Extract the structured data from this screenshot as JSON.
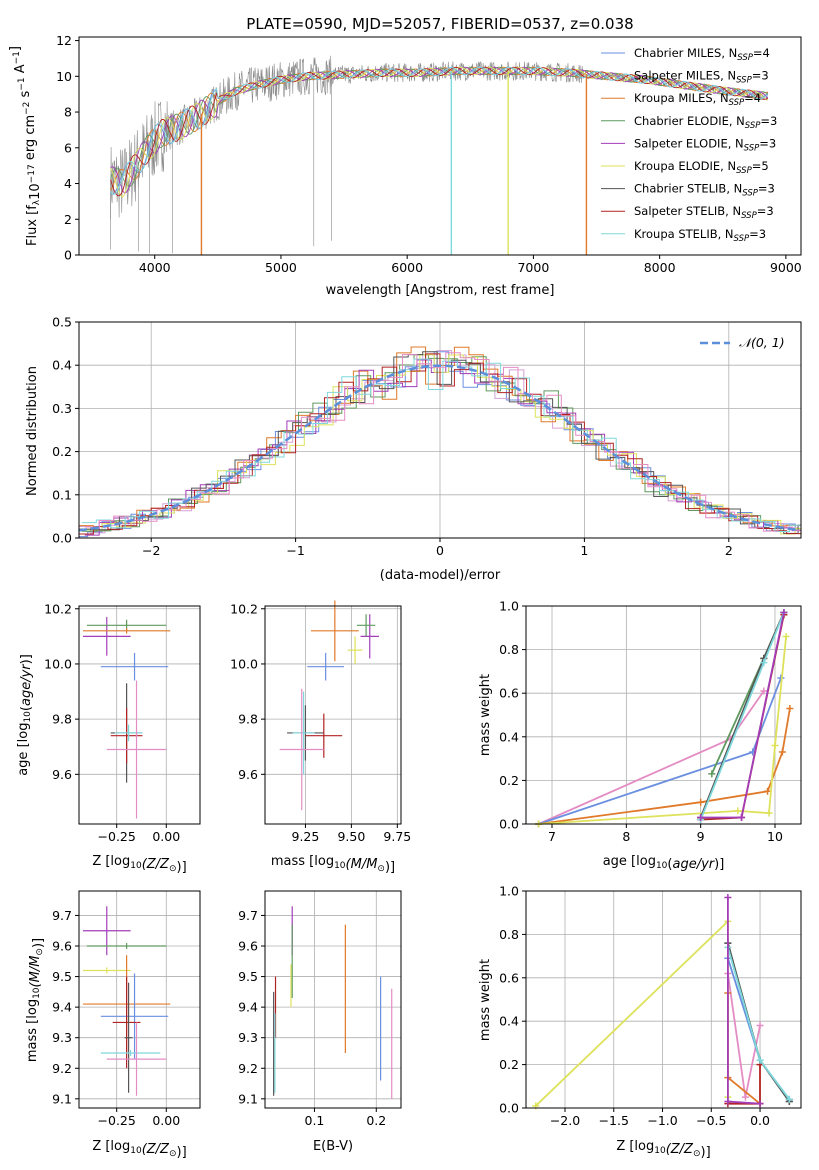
{
  "title": "PLATE=0590, MJD=52057, FIBERID=0537, z=0.038",
  "colors": {
    "cMILES": "#6a8fe0",
    "sMILES": "#e5e5e5",
    "kMILES": "#e07a2a",
    "cELODIE": "#5f9a5f",
    "sELODIE": "#a33db8",
    "kELODIE": "#dde25a",
    "cSTELIB": "#555555",
    "sSTELIB": "#b22222",
    "kSTELIB": "#7fd8dc",
    "pink": "#e48cc4",
    "grid": "#b0b0b0",
    "axis": "#000000"
  },
  "legend": [
    {
      "text": "Chabrier MILES, N",
      "sub": "SSP",
      "val": "=4",
      "color": "#6a8fe0"
    },
    {
      "text": "Salpeter MILES, N",
      "sub": "SSP",
      "val": "=3",
      "color": "#e5e5e5"
    },
    {
      "text": "Kroupa MILES, N",
      "sub": "SSP",
      "val": "=4",
      "color": "#e07a2a"
    },
    {
      "text": "Chabrier ELODIE, N",
      "sub": "SSP",
      "val": "=3",
      "color": "#5f9a5f"
    },
    {
      "text": "Salpeter ELODIE, N",
      "sub": "SSP",
      "val": "=3",
      "color": "#a33db8"
    },
    {
      "text": "Kroupa ELODIE, N",
      "sub": "SSP",
      "val": "=5",
      "color": "#dde25a"
    },
    {
      "text": "Chabrier STELIB, N",
      "sub": "SSP",
      "val": "=3",
      "color": "#555555"
    },
    {
      "text": "Salpeter STELIB, N",
      "sub": "SSP",
      "val": "=3",
      "color": "#b22222"
    },
    {
      "text": "Kroupa STELIB, N",
      "sub": "SSP",
      "val": "=3",
      "color": "#7fd8dc"
    }
  ],
  "chart_data": [
    {
      "type": "line",
      "id": "spectrum",
      "xlabel": "wavelength [Angstrom, rest frame]",
      "ylabel": "Flux [f",
      "xlim": [
        3400,
        9120
      ],
      "ylim": [
        0,
        12.2
      ],
      "xticks": [
        4000,
        5000,
        6000,
        7000,
        8000,
        9000
      ],
      "yticks": [
        0,
        2,
        4,
        6,
        8,
        10,
        12
      ],
      "continuum": [
        [
          3650,
          4.2
        ],
        [
          3750,
          4.0
        ],
        [
          3850,
          5.0
        ],
        [
          3950,
          6.0
        ],
        [
          4050,
          6.8
        ],
        [
          4200,
          7.2
        ],
        [
          4350,
          7.8
        ],
        [
          4500,
          8.6
        ],
        [
          4650,
          9.2
        ],
        [
          4800,
          9.5
        ],
        [
          5000,
          9.8
        ],
        [
          5200,
          10.0
        ],
        [
          5500,
          10.1
        ],
        [
          5800,
          10.2
        ],
        [
          6100,
          10.2
        ],
        [
          6400,
          10.3
        ],
        [
          6700,
          10.3
        ],
        [
          7000,
          10.3
        ],
        [
          7300,
          10.2
        ],
        [
          7600,
          10.0
        ],
        [
          7900,
          9.8
        ],
        [
          8200,
          9.5
        ],
        [
          8500,
          9.2
        ],
        [
          8850,
          8.9
        ]
      ],
      "dropouts": [
        {
          "x": 4370,
          "color": "#e07a2a"
        },
        {
          "x": 6350,
          "color": "#7fd8dc"
        },
        {
          "x": 6800,
          "color": "#dde25a"
        },
        {
          "x": 7420,
          "color": "#e07a2a"
        }
      ]
    },
    {
      "type": "histogram",
      "id": "residuals",
      "xlabel": "(data-model)/error",
      "ylabel": "Normed distribution",
      "xlim": [
        -2.5,
        2.5
      ],
      "ylim": [
        0,
        0.5
      ],
      "xticks": [
        -2,
        -1,
        0,
        1,
        2
      ],
      "yticks": [
        0.0,
        0.1,
        0.2,
        0.3,
        0.4,
        0.5
      ],
      "legend": "𝒩(0, 1)",
      "gaussian": {
        "mean": 0,
        "sigma": 1,
        "color": "#5b8fd9"
      },
      "bin_width": 0.1
    },
    {
      "type": "scatter",
      "id": "age_vs_Z",
      "xlabel": "Z [log",
      "xsub": "10",
      "xlabel_rest": "(Z/Z",
      "ylabel": "age  [log10(age/yr)]",
      "xlim": [
        -0.44,
        0.17
      ],
      "ylim": [
        9.42,
        10.21
      ],
      "xticks": [
        -0.25,
        0.0
      ],
      "yticks": [
        9.6,
        9.8,
        10.0,
        10.2
      ],
      "points": [
        {
          "x": -0.3,
          "y": 10.1,
          "xerr": 0.12,
          "yerr": 0.07,
          "color": "#a33db8"
        },
        {
          "x": -0.2,
          "y": 10.14,
          "xerr": 0.2,
          "yerr": 0.02,
          "color": "#5f9a5f"
        },
        {
          "x": -0.2,
          "y": 10.12,
          "xerr": 0.22,
          "yerr": 0.01,
          "color": "#e07a2a"
        },
        {
          "x": -0.16,
          "y": 9.99,
          "xerr": 0.17,
          "yerr": 0.05,
          "color": "#6a8fe0"
        },
        {
          "x": -0.2,
          "y": 9.75,
          "xerr": 0.08,
          "yerr": 0.18,
          "color": "#555555"
        },
        {
          "x": -0.2,
          "y": 9.74,
          "xerr": 0.08,
          "yerr": 0.1,
          "color": "#b22222"
        },
        {
          "x": -0.19,
          "y": 9.75,
          "xerr": 0.07,
          "yerr": 0.03,
          "color": "#7fd8dc"
        },
        {
          "x": -0.15,
          "y": 9.69,
          "xerr": 0.15,
          "yerr": 0.25,
          "color": "#e48cc4"
        }
      ]
    },
    {
      "type": "scatter",
      "id": "age_vs_mass",
      "xlabel": "mass [log",
      "xsub": "10",
      "xlabel_rest": "(M/M",
      "xlim": [
        9.03,
        9.77
      ],
      "ylim": [
        9.42,
        10.21
      ],
      "xticks": [
        9.25,
        9.5,
        9.75
      ],
      "yticks": [
        9.6,
        9.8,
        10.0,
        10.2
      ],
      "points": [
        {
          "x": 9.6,
          "y": 10.1,
          "xerr": 0.05,
          "yerr": 0.08,
          "color": "#a33db8"
        },
        {
          "x": 9.58,
          "y": 10.14,
          "xerr": 0.05,
          "yerr": 0.04,
          "color": "#5f9a5f"
        },
        {
          "x": 9.41,
          "y": 10.12,
          "xerr": 0.13,
          "yerr": 0.11,
          "color": "#e07a2a"
        },
        {
          "x": 9.36,
          "y": 9.99,
          "xerr": 0.1,
          "yerr": 0.05,
          "color": "#6a8fe0"
        },
        {
          "x": 9.25,
          "y": 9.75,
          "xerr": 0.1,
          "yerr": 0.1,
          "color": "#555555"
        },
        {
          "x": 9.35,
          "y": 9.74,
          "xerr": 0.1,
          "yerr": 0.08,
          "color": "#b22222"
        },
        {
          "x": 9.24,
          "y": 9.75,
          "xerr": 0.06,
          "yerr": 0.15,
          "color": "#7fd8dc"
        },
        {
          "x": 9.23,
          "y": 9.69,
          "xerr": 0.12,
          "yerr": 0.22,
          "color": "#e48cc4"
        },
        {
          "x": 9.52,
          "y": 10.05,
          "xerr": 0.04,
          "yerr": 0.05,
          "color": "#dde25a"
        }
      ]
    },
    {
      "type": "line",
      "id": "mass_weight_vs_age",
      "xlabel": "age  [log10(age/yr)]",
      "ylabel": "mass weight",
      "xlim": [
        6.65,
        10.35
      ],
      "ylim": [
        0,
        1.0
      ],
      "xticks": [
        7,
        8,
        9,
        10
      ],
      "yticks": [
        0.0,
        0.2,
        0.4,
        0.6,
        0.8,
        1.0
      ],
      "series": [
        {
          "color": "#e48cc4",
          "points": [
            [
              6.82,
              0.0
            ],
            [
              9.4,
              0.39
            ],
            [
              9.85,
              0.61
            ]
          ]
        },
        {
          "color": "#6a8fe0",
          "points": [
            [
              6.82,
              0.0
            ],
            [
              9.7,
              0.33
            ],
            [
              10.08,
              0.67
            ]
          ]
        },
        {
          "color": "#e07a2a",
          "points": [
            [
              6.82,
              0.0
            ],
            [
              9.0,
              0.1
            ],
            [
              9.9,
              0.15
            ],
            [
              10.1,
              0.33
            ],
            [
              10.2,
              0.53
            ]
          ]
        },
        {
          "color": "#dde25a",
          "points": [
            [
              6.82,
              0.0
            ],
            [
              9.5,
              0.06
            ],
            [
              9.92,
              0.05
            ],
            [
              10.0,
              0.36
            ],
            [
              10.15,
              0.86
            ]
          ]
        },
        {
          "color": "#5f9a5f",
          "points": [
            [
              9.15,
              0.23
            ],
            [
              9.85,
              0.76
            ],
            [
              10.12,
              0.97
            ]
          ]
        },
        {
          "color": "#555555",
          "points": [
            [
              9.0,
              0.03
            ],
            [
              9.85,
              0.76
            ],
            [
              10.12,
              0.97
            ]
          ]
        },
        {
          "color": "#b22222",
          "points": [
            [
              9.0,
              0.02
            ],
            [
              9.55,
              0.03
            ],
            [
              10.12,
              0.96
            ]
          ]
        },
        {
          "color": "#7fd8dc",
          "points": [
            [
              9.0,
              0.02
            ],
            [
              9.85,
              0.74
            ],
            [
              10.12,
              0.97
            ]
          ]
        },
        {
          "color": "#a33db8",
          "points": [
            [
              9.0,
              0.03
            ],
            [
              9.55,
              0.03
            ],
            [
              10.12,
              0.97
            ]
          ]
        }
      ]
    },
    {
      "type": "scatter",
      "id": "mass_vs_Z",
      "xlabel": "Z [log",
      "xsub": "10",
      "xlabel_rest": "(Z/Z",
      "ylabel": "mass [log10(M/M",
      "xlim": [
        -0.44,
        0.17
      ],
      "ylim": [
        9.07,
        9.78
      ],
      "xticks": [
        -0.25,
        0.0
      ],
      "yticks": [
        9.1,
        9.2,
        9.3,
        9.4,
        9.5,
        9.6,
        9.7
      ],
      "points": [
        {
          "x": -0.3,
          "y": 9.65,
          "xerr": 0.12,
          "yerr": 0.08,
          "color": "#a33db8"
        },
        {
          "x": -0.2,
          "y": 9.6,
          "xerr": 0.2,
          "yerr": 0.01,
          "color": "#5f9a5f"
        },
        {
          "x": -0.3,
          "y": 9.52,
          "xerr": 0.12,
          "yerr": 0.01,
          "color": "#dde25a"
        },
        {
          "x": -0.2,
          "y": 9.41,
          "xerr": 0.22,
          "yerr": 0.16,
          "color": "#e07a2a"
        },
        {
          "x": -0.16,
          "y": 9.37,
          "xerr": 0.17,
          "yerr": 0.14,
          "color": "#6a8fe0"
        },
        {
          "x": -0.2,
          "y": 9.35,
          "xerr": 0.07,
          "yerr": 0.15,
          "color": "#b22222"
        },
        {
          "x": -0.19,
          "y": 9.3,
          "xerr": 0.02,
          "yerr": 0.18,
          "color": "#555555"
        },
        {
          "x": -0.18,
          "y": 9.25,
          "xerr": 0.15,
          "yerr": 0.01,
          "color": "#7fd8dc"
        },
        {
          "x": -0.15,
          "y": 9.23,
          "xerr": 0.15,
          "yerr": 0.12,
          "color": "#e48cc4"
        }
      ]
    },
    {
      "type": "scatter",
      "id": "mass_vs_EBV",
      "xlabel": "E(B-V)",
      "xlim": [
        0.02,
        0.24
      ],
      "ylim": [
        9.07,
        9.78
      ],
      "xticks": [
        0.1,
        0.2
      ],
      "yticks": [
        9.1,
        9.2,
        9.3,
        9.4,
        9.5,
        9.6,
        9.7
      ],
      "points": [
        {
          "x": 0.064,
          "y": 9.65,
          "yerr": 0.08,
          "color": "#a33db8"
        },
        {
          "x": 0.064,
          "y": 9.55,
          "yerr": 0.12,
          "color": "#5f9a5f"
        },
        {
          "x": 0.062,
          "y": 9.47,
          "yerr": 0.07,
          "color": "#dde25a"
        },
        {
          "x": 0.15,
          "y": 9.46,
          "yerr": 0.21,
          "color": "#e07a2a"
        },
        {
          "x": 0.207,
          "y": 9.33,
          "yerr": 0.17,
          "color": "#6a8fe0"
        },
        {
          "x": 0.037,
          "y": 9.4,
          "yerr": 0.1,
          "color": "#b22222"
        },
        {
          "x": 0.034,
          "y": 9.28,
          "yerr": 0.17,
          "color": "#555555"
        },
        {
          "x": 0.036,
          "y": 9.25,
          "yerr": 0.13,
          "color": "#7fd8dc"
        },
        {
          "x": 0.225,
          "y": 9.28,
          "yerr": 0.18,
          "color": "#e48cc4"
        }
      ]
    },
    {
      "type": "line",
      "id": "mass_weight_vs_Z",
      "xlabel": "Z [log",
      "xsub": "10",
      "xlabel_rest": "(Z/Z",
      "ylabel": "mass weight",
      "xlim": [
        -2.4,
        0.42
      ],
      "ylim": [
        0,
        1.0
      ],
      "xticks": [
        -2.0,
        -1.5,
        -1.0,
        -0.5,
        0.0
      ],
      "yticks": [
        0.0,
        0.2,
        0.4,
        0.6,
        0.8,
        1.0
      ],
      "series": [
        {
          "color": "#dde25a",
          "points": [
            [
              -2.3,
              0.01
            ],
            [
              -0.33,
              0.86
            ],
            [
              -0.33,
              0.05
            ]
          ]
        },
        {
          "color": "#e48cc4",
          "points": [
            [
              -0.33,
              0.62
            ],
            [
              -0.15,
              0.05
            ],
            [
              0.0,
              0.38
            ]
          ]
        },
        {
          "color": "#6a8fe0",
          "points": [
            [
              -0.33,
              0.69
            ],
            [
              0.0,
              0.22
            ],
            [
              0.3,
              0.04
            ]
          ]
        },
        {
          "color": "#e07a2a",
          "points": [
            [
              -0.33,
              0.53
            ],
            [
              -0.33,
              0.14
            ],
            [
              0.0,
              0.02
            ]
          ]
        },
        {
          "color": "#5f9a5f",
          "points": [
            [
              -0.33,
              0.76
            ],
            [
              0.0,
              0.22
            ],
            [
              0.3,
              0.03
            ]
          ]
        },
        {
          "color": "#555555",
          "points": [
            [
              -0.33,
              0.76
            ],
            [
              0.0,
              0.22
            ],
            [
              0.3,
              0.03
            ]
          ]
        },
        {
          "color": "#b22222",
          "points": [
            [
              -0.33,
              0.02
            ],
            [
              0.0,
              0.02
            ],
            [
              0.0,
              0.2
            ]
          ]
        },
        {
          "color": "#7fd8dc",
          "points": [
            [
              -0.33,
              0.74
            ],
            [
              0.0,
              0.22
            ],
            [
              0.3,
              0.04
            ]
          ]
        },
        {
          "color": "#a33db8",
          "points": [
            [
              -0.33,
              0.97
            ],
            [
              -0.33,
              0.03
            ],
            [
              0.0,
              0.02
            ]
          ]
        }
      ]
    }
  ]
}
